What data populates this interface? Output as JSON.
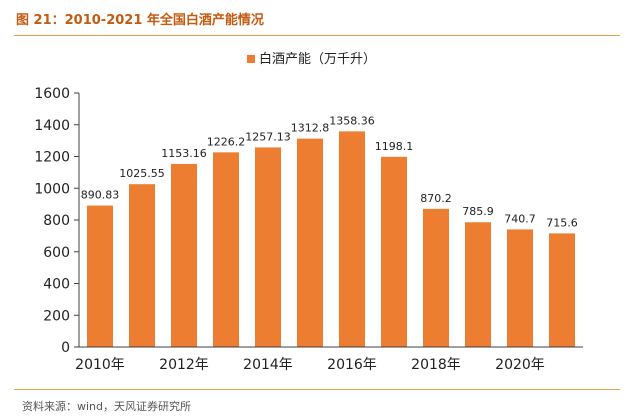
{
  "figure": {
    "title": "图 21：2010-2021 年全国白酒产能情况",
    "source": "资料来源：wind，天风证券研究所"
  },
  "colors": {
    "bar": "#ed7d31",
    "accent_line": "#e2a34e",
    "title": "#c55a11",
    "axis": "#404040",
    "text": "#222222"
  },
  "chart_data": {
    "type": "bar",
    "title": "",
    "xlabel": "",
    "ylabel": "",
    "categories": [
      "2010年",
      "2011年",
      "2012年",
      "2013年",
      "2014年",
      "2015年",
      "2016年",
      "2017年",
      "2018年",
      "2019年",
      "2020年",
      "2021年"
    ],
    "x_tick_labels": [
      "2010年",
      "",
      "2012年",
      "",
      "2014年",
      "",
      "2016年",
      "",
      "2018年",
      "",
      "2020年",
      ""
    ],
    "series": [
      {
        "name": "白酒产能（万千升）",
        "values": [
          890.83,
          1025.55,
          1153.16,
          1226.2,
          1257.13,
          1312.8,
          1358.36,
          1198.1,
          870.2,
          785.9,
          740.7,
          715.6
        ],
        "labels": [
          "890.83",
          "1025.55",
          "1153.16",
          "1226.2",
          "1257.13",
          "1312.8",
          "1358.36",
          "1198.1",
          "870.2",
          "785.9",
          "740.7",
          "715.6"
        ]
      }
    ],
    "ylim": [
      0,
      1600
    ],
    "yticks": [
      0,
      200,
      400,
      600,
      800,
      1000,
      1200,
      1400,
      1600
    ],
    "legend_position": "top-center",
    "grid": false
  }
}
